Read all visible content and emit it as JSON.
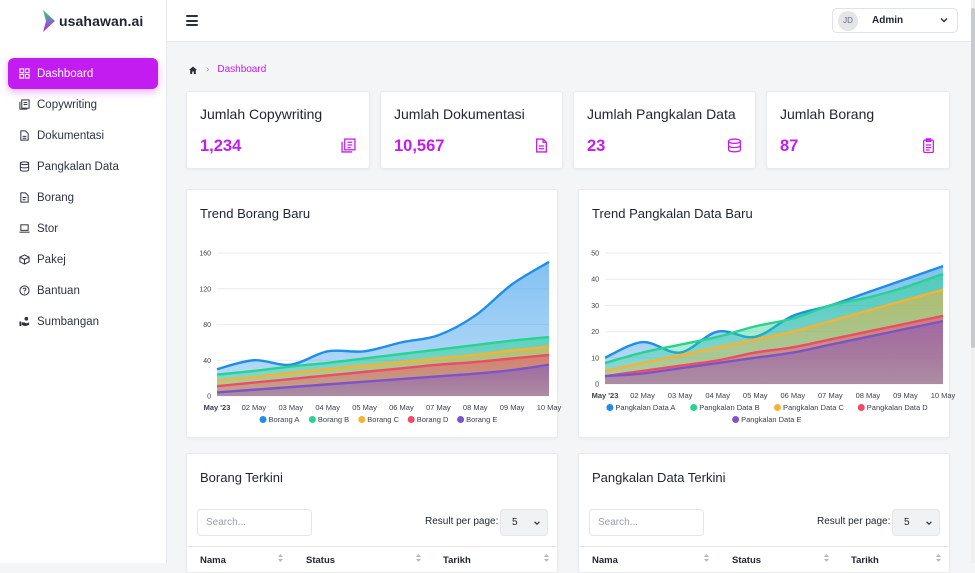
{
  "brand": {
    "name": "usahawan.ai",
    "accent": "#c31cf0"
  },
  "sidebar": {
    "items": [
      {
        "label": "Dashboard",
        "icon": "dashboard-icon",
        "active": true
      },
      {
        "label": "Copywriting",
        "icon": "copywriting-icon"
      },
      {
        "label": "Dokumentasi",
        "icon": "document-icon"
      },
      {
        "label": "Pangkalan Data",
        "icon": "database-icon"
      },
      {
        "label": "Borang",
        "icon": "form-icon"
      },
      {
        "label": "Stor",
        "icon": "laptop-icon"
      },
      {
        "label": "Pakej",
        "icon": "package-icon"
      },
      {
        "label": "Bantuan",
        "icon": "help-icon"
      },
      {
        "label": "Sumbangan",
        "icon": "donation-icon"
      }
    ]
  },
  "topbar": {
    "avatar_initials": "JD",
    "user_name": "Admin"
  },
  "breadcrumb": {
    "current": "Dashboard"
  },
  "stats": [
    {
      "title": "Jumlah Copywriting",
      "value": "1,234",
      "icon": "copywriting-icon"
    },
    {
      "title": "Jumlah Dokumentasi",
      "value": "10,567",
      "icon": "document-icon"
    },
    {
      "title": "Jumlah Pangkalan Data",
      "value": "23",
      "icon": "database-icon"
    },
    {
      "title": "Jumlah Borang",
      "value": "87",
      "icon": "clipboard-icon"
    }
  ],
  "chart_data": [
    {
      "type": "area",
      "title": "Trend Borang Baru",
      "categories": [
        "May '23",
        "02 May",
        "03 May",
        "04 May",
        "05 May",
        "06 May",
        "07 May",
        "08 May",
        "09 May",
        "10 May"
      ],
      "ylim": [
        0,
        160
      ],
      "yticks": [
        0,
        40,
        80,
        120,
        160
      ],
      "grid": true,
      "legend": "bottom",
      "series": [
        {
          "name": "Borang A",
          "color": "#1e8fe8",
          "values": [
            30,
            40,
            35,
            50,
            50,
            60,
            68,
            90,
            125,
            150
          ]
        },
        {
          "name": "Borang B",
          "color": "#28d28f",
          "values": [
            24,
            28,
            33,
            37,
            42,
            47,
            52,
            57,
            62,
            66
          ]
        },
        {
          "name": "Borang C",
          "color": "#f5b331",
          "values": [
            17,
            21,
            26,
            30,
            34,
            38,
            42,
            46,
            51,
            55
          ]
        },
        {
          "name": "Borang D",
          "color": "#ef4a67",
          "values": [
            11,
            15,
            19,
            23,
            27,
            31,
            35,
            38,
            42,
            46
          ]
        },
        {
          "name": "Borang E",
          "color": "#7b54c9",
          "values": [
            4,
            7,
            10,
            13,
            16,
            19,
            22,
            25,
            29,
            35
          ]
        }
      ]
    },
    {
      "type": "area",
      "title": "Trend Pangkalan Data Baru",
      "categories": [
        "May '23",
        "02 May",
        "03 May",
        "04 May",
        "05 May",
        "06 May",
        "07 May",
        "08 May",
        "09 May",
        "10 May"
      ],
      "ylim": [
        0,
        50
      ],
      "yticks": [
        0,
        10,
        20,
        30,
        40,
        50
      ],
      "grid": true,
      "legend": "bottom",
      "series": [
        {
          "name": "Pangkalan Data A",
          "color": "#1e8fe8",
          "values": [
            10,
            16,
            12,
            20,
            18,
            26,
            30,
            35,
            40,
            45
          ]
        },
        {
          "name": "Pangkalan Data B",
          "color": "#28d28f",
          "values": [
            8,
            12,
            15,
            18,
            22,
            25,
            30,
            33,
            37,
            42
          ]
        },
        {
          "name": "Pangkalan Data C",
          "color": "#f5b331",
          "values": [
            5,
            8,
            11,
            14,
            17,
            20,
            24,
            28,
            32,
            36
          ]
        },
        {
          "name": "Pangkalan Data D",
          "color": "#ef4a67",
          "values": [
            3,
            5,
            7,
            9,
            12,
            14,
            17,
            20,
            23,
            26
          ]
        },
        {
          "name": "Pangkalan Data E",
          "color": "#7b54c9",
          "values": [
            3,
            4,
            6,
            8,
            10,
            12,
            15,
            18,
            21,
            24
          ]
        }
      ]
    }
  ],
  "tables": [
    {
      "title": "Borang Terkini",
      "search_placeholder": "Search...",
      "rpp_label": "Result per page:",
      "rpp_value": "5",
      "columns": [
        "Nama",
        "Status",
        "Tarikh"
      ]
    },
    {
      "title": "Pangkalan Data Terkini",
      "search_placeholder": "Search...",
      "rpp_label": "Result per page:",
      "rpp_value": "5",
      "columns": [
        "Nama",
        "Status",
        "Tarikh"
      ]
    }
  ]
}
